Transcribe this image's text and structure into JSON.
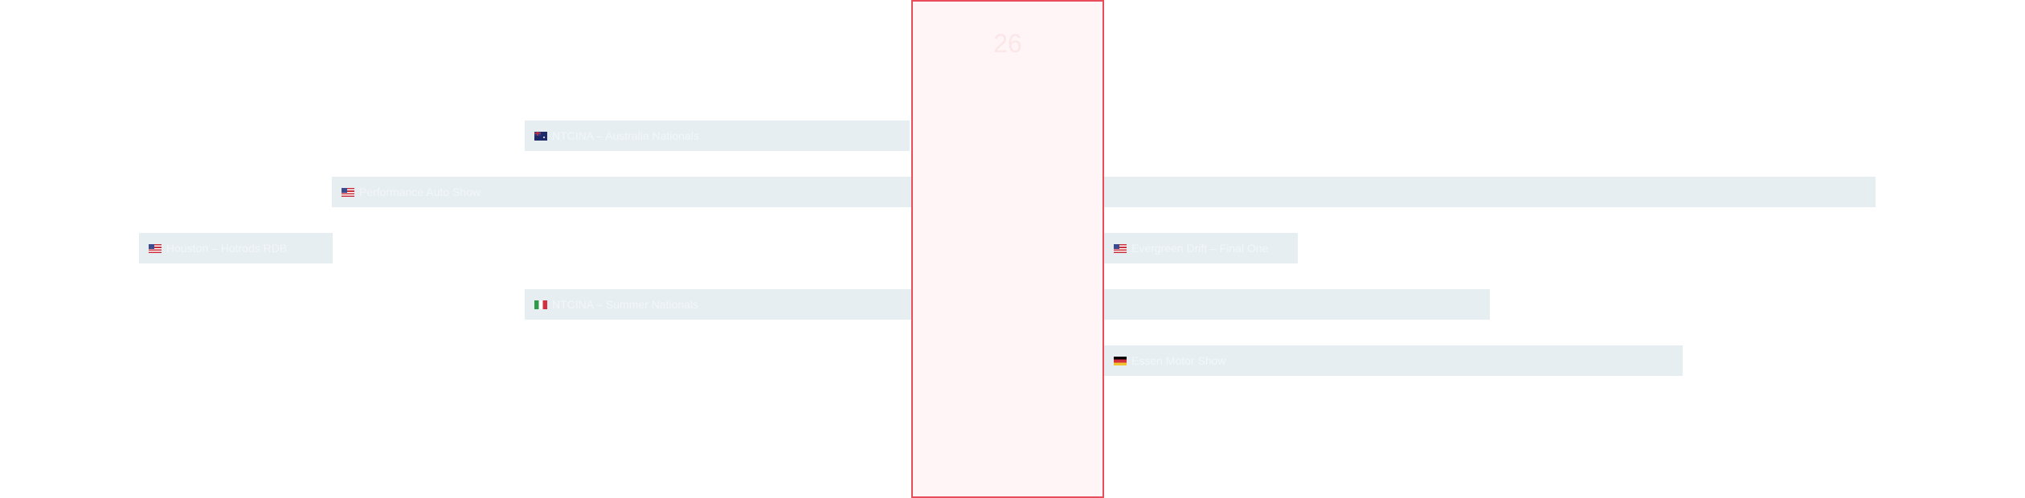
{
  "calendar": {
    "today_day": "26",
    "days": [
      {
        "num": "",
        "weekday": ""
      },
      {
        "num": "",
        "weekday": ""
      },
      {
        "num": "",
        "weekday": ""
      },
      {
        "num": "",
        "weekday": ""
      },
      {
        "num": "",
        "weekday": ""
      },
      {
        "num": "26",
        "weekday": ""
      },
      {
        "num": "",
        "weekday": ""
      },
      {
        "num": "",
        "weekday": ""
      },
      {
        "num": "",
        "weekday": ""
      },
      {
        "num": "",
        "weekday": ""
      },
      {
        "num": "",
        "weekday": ""
      }
    ]
  },
  "colors": {
    "today_border": "#e94c5a",
    "today_fill": "#fff5f6",
    "event_bar": "#e7eef1"
  },
  "events": [
    {
      "label": "NTCINA – Australia Nationals",
      "flag": "flag-au"
    },
    {
      "label": "Performance Auto Show",
      "flag": "flag-us"
    },
    {
      "label": "Houston – Hotrods RDB",
      "flag": "flag-us"
    },
    {
      "label": "Evergreen Drift – Final One",
      "flag": "flag-us"
    },
    {
      "label": "NTCINA – Summer Nationals",
      "flag": "flag-it"
    },
    {
      "label": "Essen Motor Show",
      "flag": "flag-de"
    }
  ]
}
